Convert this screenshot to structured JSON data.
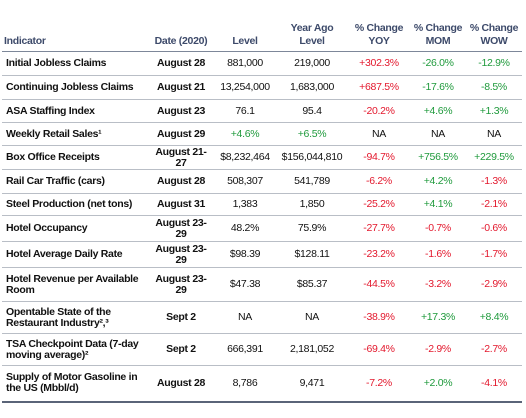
{
  "table": {
    "header": [
      "Indicator",
      "Date (2020)",
      "Level",
      "Year Ago Level",
      "% Change YOY",
      "% Change MOM",
      "% Change WOW"
    ],
    "colors": {
      "red": "#e3182d",
      "green": "#1f9a3c"
    },
    "rows": [
      [
        {
          "text": "Initial Jobless Claims"
        },
        {
          "text": "August 28"
        },
        {
          "text": "881,000"
        },
        {
          "text": "219,000"
        },
        {
          "text": "+302.3%",
          "color": "red"
        },
        {
          "text": "-26.0%",
          "color": "green"
        },
        {
          "text": "-12.9%",
          "color": "green"
        }
      ],
      [
        {
          "text": "Continuing Jobless Claims"
        },
        {
          "text": "August 21"
        },
        {
          "text": "13,254,000"
        },
        {
          "text": "1,683,000"
        },
        {
          "text": "+687.5%",
          "color": "red"
        },
        {
          "text": "-17.6%",
          "color": "green"
        },
        {
          "text": "-8.5%",
          "color": "green"
        }
      ],
      [
        {
          "text": "ASA Staffing Index"
        },
        {
          "text": "August 23"
        },
        {
          "text": "76.1"
        },
        {
          "text": "95.4"
        },
        {
          "text": "-20.2%",
          "color": "red"
        },
        {
          "text": "+4.6%",
          "color": "green"
        },
        {
          "text": "+1.3%",
          "color": "green"
        }
      ],
      [
        {
          "text": "Weekly Retail Sales¹"
        },
        {
          "text": "August 29"
        },
        {
          "text": "+4.6%",
          "color": "green"
        },
        {
          "text": "+6.5%",
          "color": "green"
        },
        {
          "text": "NA"
        },
        {
          "text": "NA"
        },
        {
          "text": "NA"
        }
      ],
      [
        {
          "text": "Box Office Receipts"
        },
        {
          "text": "August 21-27"
        },
        {
          "text": "$8,232,464"
        },
        {
          "text": "$156,044,810"
        },
        {
          "text": "-94.7%",
          "color": "red"
        },
        {
          "text": "+756.5%",
          "color": "green"
        },
        {
          "text": "+229.5%",
          "color": "green"
        }
      ],
      [
        {
          "text": "Rail Car Traffic (cars)"
        },
        {
          "text": "August 28"
        },
        {
          "text": "508,307"
        },
        {
          "text": "541,789"
        },
        {
          "text": "-6.2%",
          "color": "red"
        },
        {
          "text": "+4.2%",
          "color": "green"
        },
        {
          "text": "-1.3%",
          "color": "red"
        }
      ],
      [
        {
          "text": "Steel Production (net tons)"
        },
        {
          "text": "August 31"
        },
        {
          "text": "1,383"
        },
        {
          "text": "1,850"
        },
        {
          "text": "-25.2%",
          "color": "red"
        },
        {
          "text": "+4.1%",
          "color": "green"
        },
        {
          "text": "-2.1%",
          "color": "red"
        }
      ],
      [
        {
          "text": "Hotel Occupancy"
        },
        {
          "text": "August 23-29"
        },
        {
          "text": "48.2%"
        },
        {
          "text": "75.9%"
        },
        {
          "text": "-27.7%",
          "color": "red"
        },
        {
          "text": "-0.7%",
          "color": "red"
        },
        {
          "text": "-0.6%",
          "color": "red"
        }
      ],
      [
        {
          "text": "Hotel Average Daily Rate"
        },
        {
          "text": "August 23-29"
        },
        {
          "text": "$98.39"
        },
        {
          "text": "$128.11"
        },
        {
          "text": "-23.2%",
          "color": "red"
        },
        {
          "text": "-1.6%",
          "color": "red"
        },
        {
          "text": "-1.7%",
          "color": "red"
        }
      ],
      [
        {
          "text": "Hotel Revenue per Available Room"
        },
        {
          "text": "August 23-29"
        },
        {
          "text": "$47.38"
        },
        {
          "text": "$85.37"
        },
        {
          "text": "-44.5%",
          "color": "red"
        },
        {
          "text": "-3.2%",
          "color": "red"
        },
        {
          "text": "-2.9%",
          "color": "red"
        }
      ],
      [
        {
          "text": "Opentable State of the Restaurant Industry²,³"
        },
        {
          "text": "Sept 2"
        },
        {
          "text": "NA"
        },
        {
          "text": "NA"
        },
        {
          "text": "-38.9%",
          "color": "red"
        },
        {
          "text": "+17.3%",
          "color": "green"
        },
        {
          "text": "+8.4%",
          "color": "green"
        }
      ],
      [
        {
          "text": "TSA Checkpoint Data (7-day moving average)²"
        },
        {
          "text": "Sept 2"
        },
        {
          "text": "666,391"
        },
        {
          "text": "2,181,052"
        },
        {
          "text": "-69.4%",
          "color": "red"
        },
        {
          "text": "-2.9%",
          "color": "red"
        },
        {
          "text": "-2.7%",
          "color": "red"
        }
      ],
      [
        {
          "text": "Supply of Motor Gasoline in the US (Mbbl/d)"
        },
        {
          "text": "August 28"
        },
        {
          "text": "8,786"
        },
        {
          "text": "9,471"
        },
        {
          "text": "-7.2%",
          "color": "red"
        },
        {
          "text": "+2.0%",
          "color": "green"
        },
        {
          "text": "-4.1%",
          "color": "red"
        }
      ]
    ]
  }
}
